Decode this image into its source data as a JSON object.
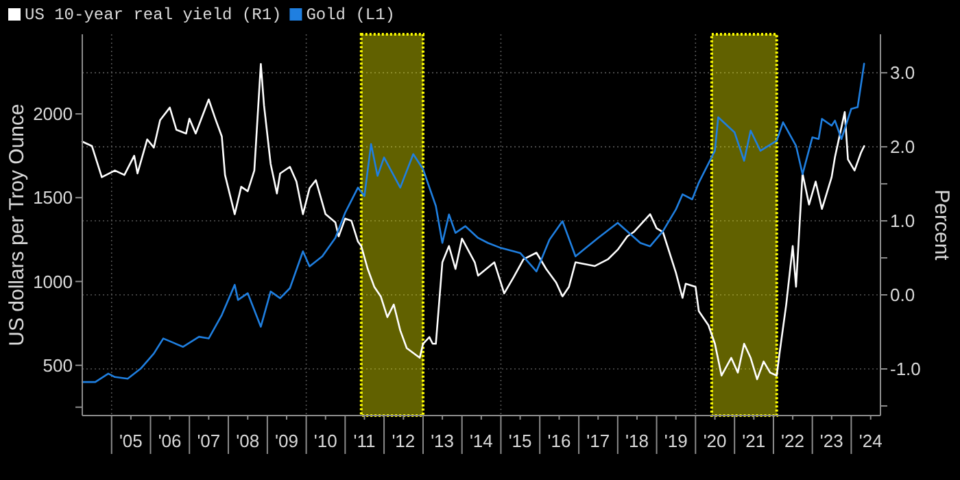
{
  "chart_data": {
    "type": "line",
    "ylabel": "US dollars per Troy Ounce",
    "y2label": "Percent",
    "xlim": [
      "2004-04",
      "2024-10"
    ],
    "xticks": [
      {
        "value": "2005-01",
        "label": null
      },
      {
        "value": "2005-07",
        "label": "'05"
      },
      {
        "value": "2006-01",
        "label": null
      },
      {
        "value": "2006-07",
        "label": "'06"
      },
      {
        "value": "2007-01",
        "label": null
      },
      {
        "value": "2007-07",
        "label": "'07"
      },
      {
        "value": "2008-01",
        "label": null
      },
      {
        "value": "2008-07",
        "label": "'08"
      },
      {
        "value": "2009-01",
        "label": null
      },
      {
        "value": "2009-07",
        "label": "'09"
      },
      {
        "value": "2010-01",
        "label": null
      },
      {
        "value": "2010-07",
        "label": "'10"
      },
      {
        "value": "2011-01",
        "label": null
      },
      {
        "value": "2011-07",
        "label": "'11"
      },
      {
        "value": "2012-01",
        "label": null
      },
      {
        "value": "2012-07",
        "label": "'12"
      },
      {
        "value": "2013-01",
        "label": null
      },
      {
        "value": "2013-07",
        "label": "'13"
      },
      {
        "value": "2014-01",
        "label": null
      },
      {
        "value": "2014-07",
        "label": "'14"
      },
      {
        "value": "2015-01",
        "label": null
      },
      {
        "value": "2015-07",
        "label": "'15"
      },
      {
        "value": "2016-01",
        "label": null
      },
      {
        "value": "2016-07",
        "label": "'16"
      },
      {
        "value": "2017-01",
        "label": null
      },
      {
        "value": "2017-07",
        "label": "'17"
      },
      {
        "value": "2018-01",
        "label": null
      },
      {
        "value": "2018-07",
        "label": "'18"
      },
      {
        "value": "2019-01",
        "label": null
      },
      {
        "value": "2019-07",
        "label": "'19"
      },
      {
        "value": "2020-01",
        "label": null
      },
      {
        "value": "2020-07",
        "label": "'20"
      },
      {
        "value": "2021-01",
        "label": null
      },
      {
        "value": "2021-07",
        "label": "'21"
      },
      {
        "value": "2022-01",
        "label": null
      },
      {
        "value": "2022-07",
        "label": "'22"
      },
      {
        "value": "2023-01",
        "label": null
      },
      {
        "value": "2023-07",
        "label": "'23"
      },
      {
        "value": "2024-01",
        "label": null
      },
      {
        "value": "2024-07",
        "label": "'24"
      }
    ],
    "ylim": [
      200,
      2475
    ],
    "yticks": [
      {
        "value": 250,
        "label": null
      },
      500,
      1000,
      1500,
      2000
    ],
    "y2lim": [
      -1.63,
      3.52
    ],
    "y2ticks": [
      {
        "value": -1.5,
        "label": null
      },
      {
        "value": -1,
        "label": "-1.0"
      },
      {
        "value": 0,
        "label": "0.0"
      },
      {
        "value": 0.5,
        "label": null
      },
      {
        "value": 1,
        "label": "1.0"
      },
      {
        "value": 1.5,
        "label": null
      },
      {
        "value": 2,
        "label": "2.0"
      },
      {
        "value": 3,
        "label": "3.0"
      }
    ],
    "grid": true,
    "legend": "top left",
    "line_style": "solid",
    "bands": [
      {
        "axis": "x",
        "from": "2011-06",
        "to": "2013-01",
        "color": "#ffff00"
      },
      {
        "axis": "x",
        "from": "2020-06",
        "to": "2022-02",
        "color": "#ffff00"
      }
    ],
    "series": [
      {
        "name": "US 10-year real yield (R1)",
        "color": "#ffffff",
        "axis": "y2",
        "x": [
          "2004-04",
          "2004-07",
          "2004-10",
          "2005-02",
          "2005-05",
          "2005-08",
          "2005-09",
          "2005-12",
          "2006-02",
          "2006-04",
          "2006-07",
          "2006-09",
          "2006-12",
          "2007-01",
          "2007-03",
          "2007-07",
          "2007-09",
          "2007-11",
          "2007-12",
          "2008-03",
          "2008-05",
          "2008-07",
          "2008-09",
          "2008-11",
          "2008-12",
          "2009-02",
          "2009-04",
          "2009-05",
          "2009-08",
          "2009-10",
          "2009-12",
          "2010-02",
          "2010-04",
          "2010-07",
          "2010-10",
          "2010-11",
          "2011-01",
          "2011-03",
          "2011-05",
          "2011-06",
          "2011-08",
          "2011-10",
          "2011-12",
          "2012-02",
          "2012-04",
          "2012-06",
          "2012-08",
          "2012-12",
          "2013-01",
          "2013-03",
          "2013-04",
          "2013-05",
          "2013-07",
          "2013-09",
          "2013-11",
          "2014-01",
          "2014-05",
          "2014-06",
          "2014-11",
          "2015-02",
          "2015-05",
          "2015-08",
          "2015-12",
          "2016-03",
          "2016-06",
          "2016-08",
          "2016-10",
          "2016-12",
          "2017-06",
          "2017-10",
          "2018-01",
          "2018-04",
          "2018-06",
          "2018-11",
          "2019-01",
          "2019-03",
          "2019-07",
          "2019-09",
          "2019-10",
          "2020-01",
          "2020-02",
          "2020-05",
          "2020-07",
          "2020-09",
          "2020-12",
          "2021-02",
          "2021-04",
          "2021-06",
          "2021-08",
          "2021-10",
          "2021-12",
          "2022-02",
          "2022-03",
          "2022-05",
          "2022-07",
          "2022-08",
          "2022-10",
          "2022-12",
          "2023-02",
          "2023-04",
          "2023-07",
          "2023-08",
          "2023-11",
          "2023-12",
          "2024-02",
          "2024-04",
          "2024-05"
        ],
        "values": [
          2.07,
          2.01,
          1.59,
          1.68,
          1.62,
          1.88,
          1.64,
          2.1,
          1.99,
          2.36,
          2.53,
          2.23,
          2.18,
          2.38,
          2.18,
          2.64,
          2.38,
          2.14,
          1.62,
          1.09,
          1.46,
          1.4,
          1.68,
          3.12,
          2.56,
          1.77,
          1.37,
          1.64,
          1.73,
          1.53,
          1.09,
          1.44,
          1.55,
          1.09,
          0.98,
          0.79,
          1.03,
          1.0,
          0.72,
          0.66,
          0.35,
          0.11,
          -0.02,
          -0.3,
          -0.13,
          -0.48,
          -0.72,
          -0.85,
          -0.66,
          -0.57,
          -0.66,
          -0.66,
          0.44,
          0.66,
          0.35,
          0.76,
          0.44,
          0.26,
          0.44,
          0.02,
          0.24,
          0.48,
          0.57,
          0.35,
          0.17,
          -0.02,
          0.11,
          0.44,
          0.39,
          0.48,
          0.61,
          0.79,
          0.85,
          1.09,
          0.9,
          0.85,
          0.3,
          -0.04,
          0.15,
          0.11,
          -0.22,
          -0.41,
          -0.66,
          -1.09,
          -0.85,
          -1.05,
          -0.66,
          -0.85,
          -1.14,
          -0.9,
          -1.05,
          -1.09,
          -0.77,
          -0.13,
          0.66,
          0.11,
          1.64,
          1.22,
          1.53,
          1.16,
          1.59,
          1.86,
          2.47,
          1.83,
          1.68,
          1.92,
          2.01
        ]
      },
      {
        "name": "Gold (L1)",
        "color": "#1f7fe0",
        "x": [
          "2004-04",
          "2004-08",
          "2004-12",
          "2005-02",
          "2005-06",
          "2005-10",
          "2006-02",
          "2006-05",
          "2006-11",
          "2007-04",
          "2007-07",
          "2007-11",
          "2008-03",
          "2008-04",
          "2008-07",
          "2008-11",
          "2009-02",
          "2009-05",
          "2009-08",
          "2009-12",
          "2010-02",
          "2010-06",
          "2010-10",
          "2011-01",
          "2011-05",
          "2011-07",
          "2011-09",
          "2011-11",
          "2012-01",
          "2012-06",
          "2012-10",
          "2013-01",
          "2013-05",
          "2013-07",
          "2013-09",
          "2013-11",
          "2014-02",
          "2014-06",
          "2014-09",
          "2015-01",
          "2015-07",
          "2015-12",
          "2016-04",
          "2016-08",
          "2016-12",
          "2017-07",
          "2018-01",
          "2018-08",
          "2018-11",
          "2019-03",
          "2019-07",
          "2019-09",
          "2019-12",
          "2020-02",
          "2020-07",
          "2020-08",
          "2021-01",
          "2021-04",
          "2021-06",
          "2021-09",
          "2022-02",
          "2022-04",
          "2022-08",
          "2022-10",
          "2023-01",
          "2023-03",
          "2023-04",
          "2023-07",
          "2023-08",
          "2023-10",
          "2024-01",
          "2024-03",
          "2024-05"
        ],
        "values": [
          400,
          400,
          450,
          430,
          420,
          480,
          570,
          660,
          610,
          670,
          660,
          800,
          980,
          890,
          930,
          730,
          940,
          900,
          960,
          1180,
          1090,
          1150,
          1260,
          1410,
          1560,
          1510,
          1820,
          1630,
          1740,
          1560,
          1760,
          1670,
          1450,
          1230,
          1400,
          1290,
          1330,
          1260,
          1230,
          1200,
          1170,
          1060,
          1250,
          1360,
          1150,
          1260,
          1350,
          1230,
          1210,
          1300,
          1430,
          1520,
          1490,
          1590,
          1780,
          1980,
          1890,
          1720,
          1900,
          1780,
          1840,
          1950,
          1810,
          1640,
          1860,
          1850,
          1970,
          1930,
          1960,
          1850,
          2030,
          2040,
          2300
        ]
      }
    ]
  }
}
